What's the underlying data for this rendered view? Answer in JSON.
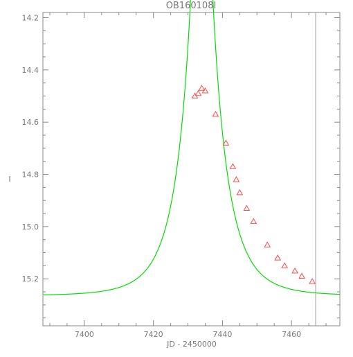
{
  "chart_data": {
    "type": "line",
    "title": "OB160108I",
    "xlabel": "JD - 2450000",
    "ylabel": "I",
    "xlim": [
      7388,
      7474
    ],
    "ylim": [
      15.38,
      14.18
    ],
    "y_inverted": true,
    "x_ticks": [
      7400,
      7420,
      7440,
      7460
    ],
    "x_tick_labels": [
      "7400",
      "7420",
      "7440",
      "7460"
    ],
    "y_ticks": [
      14.2,
      14.4,
      14.6,
      14.8,
      15.0,
      15.2
    ],
    "y_tick_labels": [
      "14.2",
      "14.4",
      "14.6",
      "14.8",
      "15.0",
      "15.2"
    ],
    "grid": false,
    "vertical_marker_x": 7467,
    "model_curve": {
      "color": "#00dd00",
      "base_mag": 15.265,
      "t0": 7434.0,
      "tE": 9.5,
      "u0": 0.145
    },
    "series": [
      {
        "marker": "triangle",
        "color": "#ff4a4a",
        "x": [
          7432,
          7433,
          7434,
          7435,
          7438,
          7441,
          7443,
          7444,
          7445,
          7447,
          7449,
          7453,
          7456,
          7458,
          7461,
          7463,
          7466
        ],
        "y": [
          14.5,
          14.49,
          14.47,
          14.48,
          14.57,
          14.68,
          14.77,
          14.82,
          14.87,
          14.93,
          14.98,
          15.07,
          15.12,
          15.15,
          15.17,
          15.19,
          15.21
        ]
      }
    ]
  }
}
